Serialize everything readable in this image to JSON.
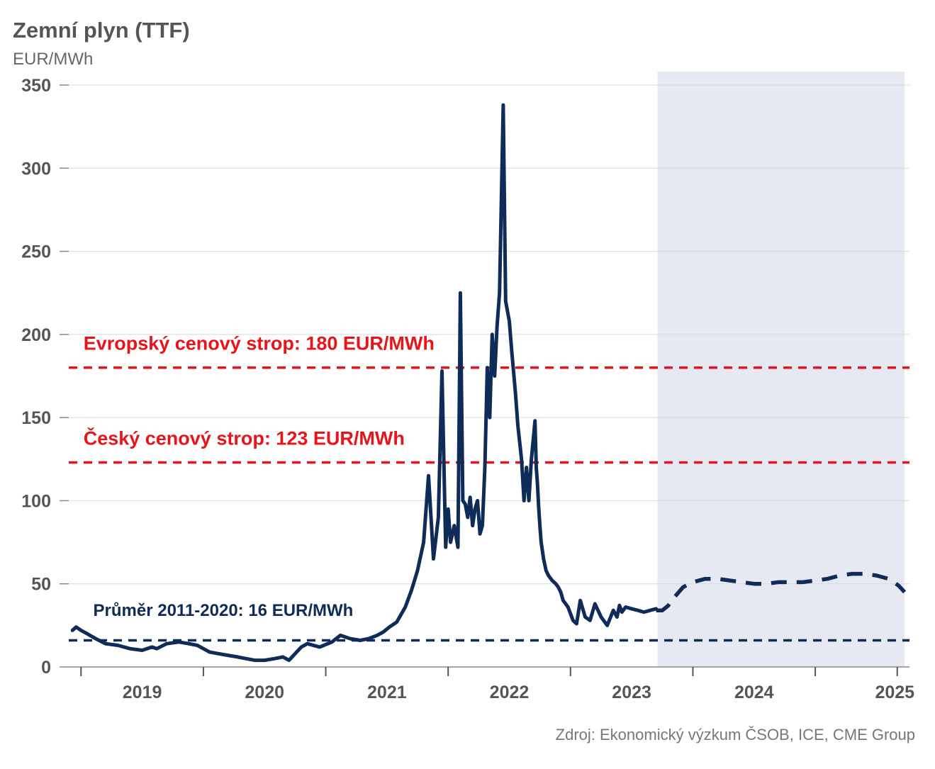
{
  "chart_data": {
    "type": "line",
    "title": "Zemní plyn (TTF)",
    "ylabel": "EUR/MWh",
    "xlabel": "",
    "source": "Zdroj: Ekonomický výzkum ČSOB, ICE, CME Group",
    "ylim": [
      0,
      350
    ],
    "xlim": [
      2018.4,
      2025.27
    ],
    "yticks": [
      0,
      50,
      100,
      150,
      200,
      250,
      300,
      350
    ],
    "ytick_labels": [
      "0",
      "50",
      "100",
      "150",
      "200",
      "250",
      "300",
      "350"
    ],
    "xtick_positions": [
      2018.5,
      2019.5,
      2020.5,
      2021.5,
      2022.5,
      2023.5,
      2024.5,
      2025.17
    ],
    "xticks": [
      {
        "label": "2019",
        "pos": 2019.0
      },
      {
        "label": "2020",
        "pos": 2020.0
      },
      {
        "label": "2021",
        "pos": 2021.0
      },
      {
        "label": "2022",
        "pos": 2022.0
      },
      {
        "label": "2023",
        "pos": 2023.0
      },
      {
        "label": "2024",
        "pos": 2024.0
      },
      {
        "label": "2025",
        "pos": 2025.15
      }
    ],
    "grid": true,
    "forecast_region": {
      "x_start": 2023.21,
      "x_end": 2025.23,
      "color": "#e6e9f2"
    },
    "reference_lines": [
      {
        "name": "Evropský cenový strop",
        "value": 180,
        "color": "#e8141a",
        "label": "Evropský cenový strop: 180 EUR/MWh",
        "label_x": 2018.52,
        "label_value": 195
      },
      {
        "name": "Český cenový strop",
        "value": 123,
        "color": "#e8141a",
        "label": "Český cenový strop: 123 EUR/MWh",
        "label_x": 2018.52,
        "label_value": 138
      },
      {
        "name": "Průměr 2011-2020",
        "value": 16,
        "color": "#0f2b57",
        "label": "Průměr 2011-2020: 16 EUR/MWh",
        "label_x": 2018.6,
        "label_value": 35
      }
    ],
    "series": [
      {
        "name": "TTF historical",
        "style": "solid",
        "color": "#0f2b57",
        "x": [
          2018.43,
          2018.46,
          2018.5,
          2018.55,
          2018.62,
          2018.7,
          2018.8,
          2018.9,
          2019.0,
          2019.08,
          2019.12,
          2019.2,
          2019.3,
          2019.38,
          2019.45,
          2019.5,
          2019.55,
          2019.62,
          2019.7,
          2019.78,
          2019.85,
          2019.92,
          2020.0,
          2020.08,
          2020.15,
          2020.2,
          2020.25,
          2020.3,
          2020.35,
          2020.45,
          2020.55,
          2020.62,
          2020.7,
          2020.78,
          2020.85,
          2020.92,
          2020.97,
          2021.02,
          2021.08,
          2021.15,
          2021.2,
          2021.25,
          2021.3,
          2021.34,
          2021.38,
          2021.42,
          2021.45,
          2021.48,
          2021.5,
          2021.52,
          2021.55,
          2021.58,
          2021.6,
          2021.62,
          2021.64,
          2021.66,
          2021.68,
          2021.7,
          2021.72,
          2021.74,
          2021.76,
          2021.78,
          2021.8,
          2021.82,
          2021.84,
          2021.86,
          2021.88,
          2021.9,
          2021.92,
          2021.95,
          2021.97,
          2022.0,
          2022.02,
          2022.05,
          2022.07,
          2022.1,
          2022.12,
          2022.14,
          2022.16,
          2022.18,
          2022.2,
          2022.21,
          2022.22,
          2022.23,
          2022.24,
          2022.25,
          2022.26,
          2022.28,
          2022.3,
          2022.32,
          2022.35,
          2022.38,
          2022.4,
          2022.42,
          2022.44,
          2022.46,
          2022.48,
          2022.5,
          2022.52,
          2022.55,
          2022.58,
          2022.62,
          2022.66,
          2022.7,
          2022.75,
          2022.8,
          2022.85,
          2022.88,
          2022.9,
          2022.92,
          2022.95,
          2023.0,
          2023.05,
          2023.1,
          2023.15,
          2023.2
        ],
        "values": [
          22,
          24,
          22,
          20,
          17,
          14,
          13,
          11,
          10,
          12,
          11,
          14,
          15,
          14,
          13,
          11,
          9,
          8,
          7,
          6,
          5,
          4,
          4,
          5,
          6,
          4,
          8,
          12,
          14,
          12,
          15,
          19,
          17,
          16,
          17,
          19,
          21,
          24,
          27,
          36,
          46,
          58,
          75,
          115,
          65,
          90,
          178,
          72,
          95,
          75,
          85,
          72,
          225,
          100,
          98,
          90,
          102,
          85,
          95,
          100,
          80,
          85,
          120,
          180,
          150,
          200,
          175,
          205,
          225,
          338,
          220,
          208,
          190,
          165,
          145,
          125,
          100,
          120,
          100,
          125,
          140,
          148,
          120,
          110,
          96,
          85,
          75,
          65,
          58,
          55,
          52,
          50,
          48,
          45,
          40,
          38,
          36,
          32,
          28,
          26,
          40,
          30,
          28,
          38,
          30,
          25,
          34,
          30,
          37,
          33,
          36,
          35,
          34,
          33,
          34,
          35
        ]
      },
      {
        "name": "Forward curve",
        "style": "dashed",
        "color": "#0f2b57",
        "x": [
          2023.2,
          2023.25,
          2023.3,
          2023.35,
          2023.42,
          2023.5,
          2023.6,
          2023.7,
          2023.8,
          2023.9,
          2024.0,
          2024.1,
          2024.2,
          2024.3,
          2024.4,
          2024.5,
          2024.6,
          2024.7,
          2024.8,
          2024.9,
          2025.0,
          2025.1,
          2025.18,
          2025.23
        ],
        "values": [
          34,
          34,
          37,
          42,
          48,
          51,
          53,
          53,
          52,
          51,
          50,
          50,
          51,
          51,
          51,
          52,
          53,
          55,
          56,
          56,
          55,
          53,
          49,
          45
        ]
      }
    ]
  }
}
